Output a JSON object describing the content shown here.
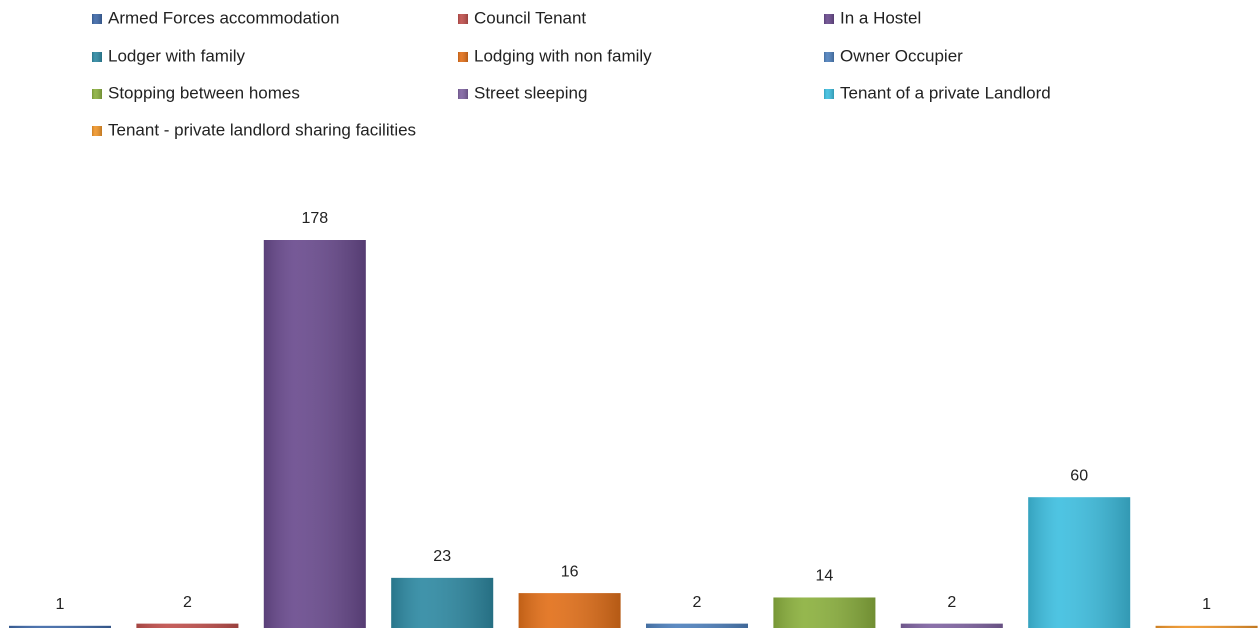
{
  "chart_data": {
    "type": "bar",
    "series": [
      {
        "name": "Armed Forces accommodation",
        "color": "#3f69a8",
        "values": [
          1
        ]
      },
      {
        "name": "Council Tenant",
        "color": "#c0504d",
        "values": [
          2
        ]
      },
      {
        "name": "In a Hostel",
        "color": "#6a4b8e",
        "values": [
          178
        ]
      },
      {
        "name": "Lodger with family",
        "color": "#2f8aa3",
        "values": [
          23
        ]
      },
      {
        "name": "Lodging with non family",
        "color": "#e2701a",
        "values": [
          16
        ]
      },
      {
        "name": "Owner Occupier",
        "color": "#4f81bd",
        "values": [
          2
        ]
      },
      {
        "name": "Stopping between homes",
        "color": "#8cb13f",
        "values": [
          14
        ]
      },
      {
        "name": "Street sleeping",
        "color": "#8064a2",
        "values": [
          2
        ]
      },
      {
        "name": "Tenant of a private Landlord",
        "color": "#3fbfe0",
        "values": [
          60
        ]
      },
      {
        "name": "Tenant - private landlord sharing facilities",
        "color": "#f0962a",
        "values": [
          1
        ]
      }
    ],
    "legend": "top"
  }
}
